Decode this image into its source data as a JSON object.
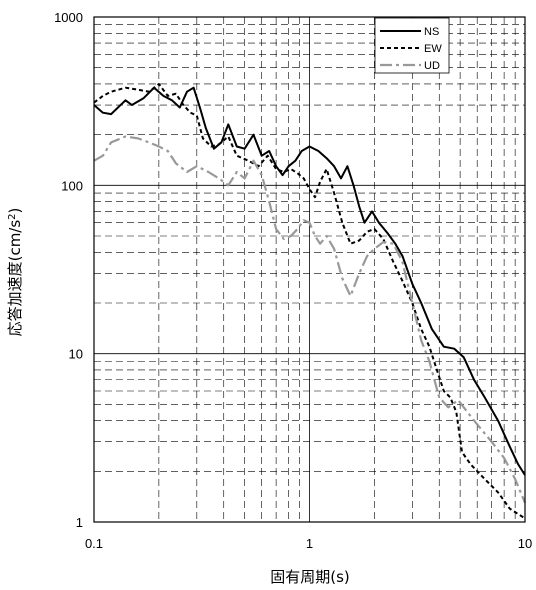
{
  "chart_data": {
    "type": "line",
    "title": "",
    "xlabel": "固有周期(s)",
    "ylabel_main": "応答加速度(cm/s",
    "ylabel_sup": "2",
    "ylabel_close": ")",
    "xscale": "log",
    "yscale": "log",
    "xlim": [
      0.1,
      10
    ],
    "ylim": [
      1,
      1000
    ],
    "x_ticks": [
      {
        "value": 0.1,
        "label": "0.1"
      },
      {
        "value": 1,
        "label": "1"
      },
      {
        "value": 10,
        "label": "10"
      }
    ],
    "y_ticks": [
      {
        "value": 1,
        "label": "1"
      },
      {
        "value": 10,
        "label": "10"
      },
      {
        "value": 100,
        "label": "100"
      },
      {
        "value": 1000,
        "label": "1000"
      }
    ],
    "grid": true,
    "legend_position": "top-right",
    "series": [
      {
        "name": "NS",
        "color": "#000000",
        "style": "solid",
        "points": [
          [
            0.1,
            300
          ],
          [
            0.11,
            270
          ],
          [
            0.12,
            265
          ],
          [
            0.14,
            320
          ],
          [
            0.15,
            300
          ],
          [
            0.17,
            330
          ],
          [
            0.19,
            380
          ],
          [
            0.21,
            340
          ],
          [
            0.23,
            320
          ],
          [
            0.25,
            290
          ],
          [
            0.27,
            360
          ],
          [
            0.29,
            380
          ],
          [
            0.31,
            290
          ],
          [
            0.33,
            220
          ],
          [
            0.36,
            165
          ],
          [
            0.39,
            180
          ],
          [
            0.42,
            230
          ],
          [
            0.46,
            170
          ],
          [
            0.5,
            165
          ],
          [
            0.55,
            200
          ],
          [
            0.6,
            150
          ],
          [
            0.65,
            160
          ],
          [
            0.7,
            130
          ],
          [
            0.75,
            115
          ],
          [
            0.8,
            130
          ],
          [
            0.86,
            140
          ],
          [
            0.92,
            160
          ],
          [
            1.0,
            170
          ],
          [
            1.1,
            160
          ],
          [
            1.2,
            145
          ],
          [
            1.3,
            130
          ],
          [
            1.4,
            110
          ],
          [
            1.5,
            130
          ],
          [
            1.6,
            100
          ],
          [
            1.7,
            75
          ],
          [
            1.8,
            60
          ],
          [
            1.95,
            70
          ],
          [
            2.1,
            60
          ],
          [
            2.3,
            52
          ],
          [
            2.5,
            45
          ],
          [
            2.7,
            38
          ],
          [
            3.0,
            26
          ],
          [
            3.3,
            20
          ],
          [
            3.7,
            14
          ],
          [
            4.2,
            11
          ],
          [
            4.7,
            10.7
          ],
          [
            5.2,
            9.5
          ],
          [
            5.8,
            7
          ],
          [
            6.5,
            5.5
          ],
          [
            7.5,
            4
          ],
          [
            8.5,
            2.8
          ],
          [
            9.3,
            2.2
          ],
          [
            10,
            1.9
          ]
        ]
      },
      {
        "name": "EW",
        "color": "#000000",
        "style": "dashed",
        "points": [
          [
            0.1,
            310
          ],
          [
            0.11,
            340
          ],
          [
            0.12,
            360
          ],
          [
            0.14,
            380
          ],
          [
            0.16,
            370
          ],
          [
            0.18,
            360
          ],
          [
            0.2,
            400
          ],
          [
            0.22,
            340
          ],
          [
            0.24,
            350
          ],
          [
            0.26,
            300
          ],
          [
            0.28,
            270
          ],
          [
            0.3,
            260
          ],
          [
            0.32,
            190
          ],
          [
            0.35,
            170
          ],
          [
            0.38,
            175
          ],
          [
            0.42,
            195
          ],
          [
            0.46,
            150
          ],
          [
            0.52,
            140
          ],
          [
            0.58,
            130
          ],
          [
            0.64,
            150
          ],
          [
            0.7,
            125
          ],
          [
            0.76,
            120
          ],
          [
            0.82,
            125
          ],
          [
            0.88,
            118
          ],
          [
            0.94,
            110
          ],
          [
            1.0,
            95
          ],
          [
            1.06,
            85
          ],
          [
            1.12,
            105
          ],
          [
            1.2,
            125
          ],
          [
            1.3,
            90
          ],
          [
            1.42,
            60
          ],
          [
            1.55,
            45
          ],
          [
            1.7,
            47
          ],
          [
            1.85,
            53
          ],
          [
            2.0,
            55
          ],
          [
            2.2,
            48
          ],
          [
            2.45,
            35
          ],
          [
            2.7,
            27
          ],
          [
            3.0,
            20
          ],
          [
            3.3,
            14
          ],
          [
            3.6,
            11
          ],
          [
            3.9,
            8
          ],
          [
            4.2,
            6
          ],
          [
            4.5,
            5.5
          ],
          [
            4.8,
            4.5
          ],
          [
            5.1,
            2.6
          ],
          [
            5.6,
            2.2
          ],
          [
            6.5,
            1.8
          ],
          [
            7.5,
            1.5
          ],
          [
            8.5,
            1.2
          ],
          [
            10,
            1.05
          ]
        ]
      },
      {
        "name": "UD",
        "color": "#999999",
        "style": "dashdot",
        "points": [
          [
            0.1,
            140
          ],
          [
            0.11,
            150
          ],
          [
            0.12,
            180
          ],
          [
            0.14,
            195
          ],
          [
            0.16,
            190
          ],
          [
            0.18,
            180
          ],
          [
            0.2,
            170
          ],
          [
            0.22,
            160
          ],
          [
            0.24,
            135
          ],
          [
            0.27,
            120
          ],
          [
            0.3,
            130
          ],
          [
            0.34,
            120
          ],
          [
            0.38,
            110
          ],
          [
            0.42,
            100
          ],
          [
            0.46,
            120
          ],
          [
            0.5,
            110
          ],
          [
            0.55,
            140
          ],
          [
            0.6,
            115
          ],
          [
            0.65,
            80
          ],
          [
            0.7,
            55
          ],
          [
            0.76,
            48
          ],
          [
            0.82,
            50
          ],
          [
            0.88,
            55
          ],
          [
            0.94,
            62
          ],
          [
            1.0,
            60
          ],
          [
            1.06,
            50
          ],
          [
            1.12,
            45
          ],
          [
            1.2,
            50
          ],
          [
            1.3,
            42
          ],
          [
            1.42,
            28
          ],
          [
            1.55,
            22
          ],
          [
            1.7,
            30
          ],
          [
            1.85,
            38
          ],
          [
            2.0,
            42
          ],
          [
            2.2,
            46
          ],
          [
            2.45,
            45
          ],
          [
            2.7,
            35
          ],
          [
            3.0,
            20
          ],
          [
            3.3,
            12
          ],
          [
            3.6,
            9
          ],
          [
            4.0,
            5.5
          ],
          [
            4.4,
            4.8
          ],
          [
            4.9,
            5.3
          ],
          [
            5.4,
            4.5
          ],
          [
            6.0,
            3.8
          ],
          [
            7.0,
            3
          ],
          [
            8.0,
            2.4
          ],
          [
            9.0,
            1.8
          ],
          [
            10,
            1.3
          ]
        ]
      }
    ]
  }
}
